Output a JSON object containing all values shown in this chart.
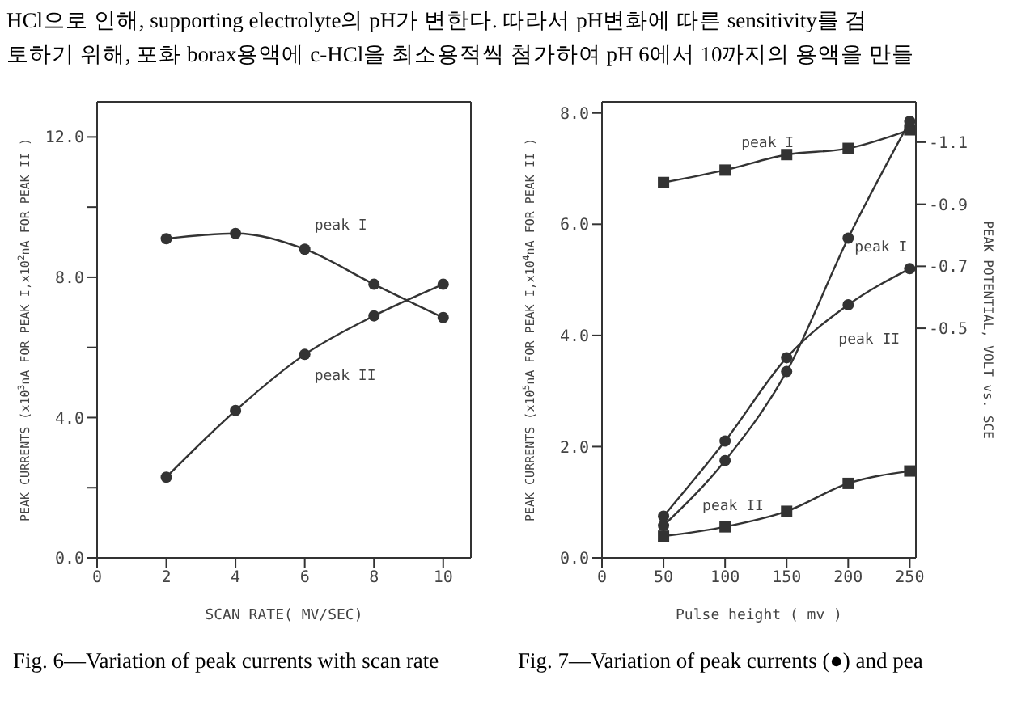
{
  "chart_data": [
    {
      "type": "line",
      "xlabel": "SCAN RATE( MV/SEC)",
      "ylabel": "PEAK CURRENTS (x10$^{3}$nA FOR PEAK I,x10$^{2}$nA FOR PEAK II )",
      "x": [
        2,
        4,
        6,
        8,
        10
      ],
      "series": [
        {
          "name": "peak I",
          "color": "#333333",
          "values": [
            9.1,
            9.25,
            8.8,
            7.8,
            6.85
          ]
        },
        {
          "name": "peak II",
          "color": "#333333",
          "values": [
            2.3,
            4.2,
            5.8,
            6.9,
            7.8
          ]
        }
      ],
      "xlim": [
        0,
        10.8
      ],
      "xticks": [
        0,
        2,
        4,
        6,
        8,
        10
      ],
      "ylim": [
        0,
        13
      ],
      "yticks": [
        {
          "value": 0,
          "label": "0.0"
        },
        {
          "value": 2,
          "label": null
        },
        {
          "value": 4,
          "label": "4.0"
        },
        {
          "value": 6,
          "label": null
        },
        {
          "value": 8,
          "label": "8.0"
        },
        {
          "value": 10,
          "label": null
        },
        {
          "value": 12,
          "label": "12.0"
        }
      ],
      "marker": "circle",
      "grid": false,
      "legend": false,
      "annotations": [
        "HCl으로 인해, supporting electrolyte의 pH가 변한다. 따라서 pH변화에 따른 sensitivity를 검",
        "토하기 위해, 포화 borax용액에 c-HCl을 최소용적씩 첨가하여 pH 6에서 10까지의 용액을 만들",
        "Fig. 6—Variation of peak currents with scan rate"
      ]
    },
    {
      "type": "line",
      "xlabel": "Pulse height ( mv )",
      "ylabel": "PEAK CURRENTS (x10$^{5}$nA FOR PEAK I,x10$^{4}$nA FOR PEAK II )",
      "y2label": "PEAK POTENTIAL, VOLT vs. SCE",
      "x": [
        50,
        100,
        150,
        200,
        250
      ],
      "series": [
        {
          "name": "peak I",
          "color": "#333333",
          "axis": "y2",
          "marker": "square",
          "values": [
            -0.97,
            -1.01,
            -1.06,
            -1.08,
            -1.14
          ]
        },
        {
          "name": "peak I",
          "color": "#333333",
          "marker": "circle",
          "values": [
            0.58,
            1.75,
            3.35,
            5.75,
            7.85
          ]
        },
        {
          "name": "peak II",
          "color": "#333333",
          "marker": "circle",
          "values": [
            0.75,
            2.1,
            3.6,
            4.55,
            5.2
          ]
        },
        {
          "name": "peak II",
          "color": "#333333",
          "axis": "y2",
          "marker": "square",
          "values": [
            0.17,
            0.14,
            0.09,
            0.0,
            -0.04
          ]
        }
      ],
      "xlim": [
        0,
        255
      ],
      "xticks": [
        0,
        50,
        100,
        150,
        200,
        250
      ],
      "ylim": [
        0,
        8.2
      ],
      "yticks": [
        {
          "value": 0,
          "label": "0.0"
        },
        {
          "value": 2,
          "label": "2.0"
        },
        {
          "value": 4,
          "label": "4.0"
        },
        {
          "value": 6,
          "label": "6.0"
        },
        {
          "value": 8,
          "label": "8.0"
        }
      ],
      "y2lim": [
        0.24,
        -1.23
      ],
      "y2ticks": [
        -1.1,
        -0.9,
        -0.7,
        -0.5
      ],
      "grid": false,
      "legend": false,
      "annotations": [
        "Fig. 7—Variation of peak currents (●) and pea"
      ]
    }
  ]
}
